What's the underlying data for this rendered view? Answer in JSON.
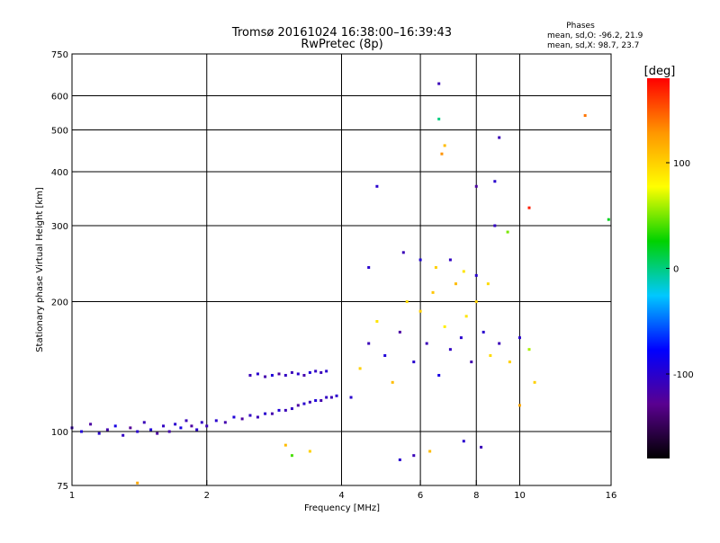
{
  "chart_data": {
    "type": "scatter",
    "title": "Tromsø 20161024 16:38:00–16:39:43",
    "subtitle": "RwPretec (8p)",
    "xlabel": "Frequency [MHz]",
    "ylabel": "Stationary phase Virtual Height [km]",
    "x_scale": "log",
    "y_scale": "log",
    "xlim": [
      1,
      16
    ],
    "ylim": [
      75,
      750
    ],
    "x_ticks": [
      1,
      2,
      4,
      6,
      8,
      10,
      16
    ],
    "x_tick_labels": [
      "1",
      "2",
      "4",
      "6",
      "8",
      "10",
      "16"
    ],
    "y_ticks": [
      75,
      100,
      200,
      300,
      400,
      500,
      600,
      750
    ],
    "y_tick_labels": [
      "75",
      "100",
      "200",
      "300",
      "400",
      "500",
      "600",
      "750"
    ],
    "grid": true,
    "phase_stats": {
      "heading": "Phases",
      "line_o": "mean, sd,O: -96.2, 21.9",
      "line_x": "mean, sd,X:  98.7, 23.7"
    },
    "colorbar": {
      "label": "[deg]",
      "min": -180,
      "max": 180,
      "ticks": [
        100,
        0,
        -100
      ],
      "tick_labels": [
        "100",
        "0",
        "-100"
      ],
      "colors": [
        "#000000",
        "#5a0090",
        "#0000ff",
        "#00c8ff",
        "#00d200",
        "#ffff00",
        "#ff9600",
        "#ff0000"
      ]
    },
    "clusters": [
      {
        "name": "",
        "points": [
          [
            1.0,
            102,
            -110
          ],
          [
            1.05,
            100,
            -95
          ],
          [
            1.1,
            104,
            -120
          ],
          [
            1.15,
            99,
            -100
          ],
          [
            1.2,
            101,
            -115
          ],
          [
            1.25,
            103,
            -90
          ],
          [
            1.3,
            98,
            -105
          ],
          [
            1.35,
            102,
            -125
          ],
          [
            1.4,
            100,
            -100
          ],
          [
            1.45,
            105,
            -110
          ],
          [
            1.5,
            101,
            -95
          ],
          [
            1.55,
            99,
            -120
          ],
          [
            1.6,
            103,
            -105
          ],
          [
            1.65,
            100,
            -115
          ],
          [
            1.7,
            104,
            -100
          ],
          [
            1.75,
            102,
            -90
          ],
          [
            1.8,
            106,
            -110
          ],
          [
            1.85,
            103,
            -120
          ],
          [
            1.9,
            101,
            -100
          ],
          [
            1.95,
            105,
            -105
          ]
        ]
      },
      {
        "name": "",
        "points": [
          [
            2.0,
            103,
            -110
          ],
          [
            2.1,
            106,
            -100
          ],
          [
            2.2,
            105,
            -115
          ],
          [
            2.3,
            108,
            -95
          ],
          [
            2.4,
            107,
            -120
          ],
          [
            2.5,
            109,
            -105
          ],
          [
            2.6,
            108,
            -110
          ],
          [
            2.7,
            110,
            -100
          ],
          [
            2.8,
            110,
            -115
          ],
          [
            2.9,
            112,
            -95
          ],
          [
            3.0,
            112,
            -110
          ],
          [
            3.1,
            113,
            -105
          ],
          [
            3.2,
            115,
            -120
          ],
          [
            3.3,
            116,
            -100
          ],
          [
            3.4,
            117,
            -110
          ],
          [
            3.5,
            118,
            -95
          ],
          [
            3.6,
            118,
            -115
          ],
          [
            3.7,
            120,
            -105
          ],
          [
            3.8,
            120,
            -110
          ],
          [
            3.9,
            121,
            -100
          ]
        ]
      },
      {
        "name": "",
        "points": [
          [
            2.5,
            135,
            -110
          ],
          [
            2.6,
            136,
            -100
          ],
          [
            2.7,
            134,
            -115
          ],
          [
            2.8,
            135,
            -95
          ],
          [
            2.9,
            136,
            -120
          ],
          [
            3.0,
            135,
            -105
          ],
          [
            3.1,
            137,
            -110
          ],
          [
            3.2,
            136,
            -100
          ],
          [
            3.3,
            135,
            -115
          ],
          [
            3.4,
            137,
            -95
          ],
          [
            3.5,
            138,
            -105
          ],
          [
            3.6,
            137,
            -110
          ],
          [
            3.7,
            138,
            -100
          ]
        ]
      },
      {
        "name": "",
        "points": [
          [
            4.2,
            120,
            -100
          ],
          [
            4.4,
            140,
            100
          ],
          [
            4.6,
            160,
            -110
          ],
          [
            4.8,
            180,
            90
          ],
          [
            5.0,
            150,
            -95
          ],
          [
            5.2,
            130,
            110
          ],
          [
            5.4,
            170,
            -120
          ],
          [
            5.6,
            200,
            95
          ],
          [
            5.8,
            145,
            -100
          ],
          [
            6.0,
            190,
            100
          ],
          [
            6.2,
            160,
            -110
          ],
          [
            6.4,
            210,
            105
          ],
          [
            6.6,
            135,
            -90
          ],
          [
            6.8,
            175,
            85
          ],
          [
            7.0,
            155,
            -105
          ],
          [
            7.2,
            220,
            110
          ],
          [
            7.4,
            165,
            -100
          ],
          [
            7.6,
            185,
            90
          ],
          [
            7.8,
            145,
            -115
          ],
          [
            8.0,
            200,
            100
          ],
          [
            8.3,
            170,
            -100
          ],
          [
            8.6,
            150,
            95
          ],
          [
            9.0,
            160,
            -110
          ],
          [
            9.5,
            145,
            100
          ],
          [
            10.0,
            165,
            -100
          ],
          [
            10.5,
            155,
            60
          ]
        ]
      },
      {
        "name": "",
        "points": [
          [
            4.6,
            240,
            -100
          ],
          [
            5.5,
            260,
            -110
          ],
          [
            6.0,
            250,
            -95
          ],
          [
            6.5,
            240,
            100
          ],
          [
            7.0,
            250,
            -105
          ],
          [
            7.5,
            235,
            90
          ],
          [
            8.0,
            230,
            -100
          ],
          [
            8.5,
            220,
            95
          ]
        ]
      },
      {
        "name": "",
        "points": [
          [
            4.8,
            370,
            -100
          ],
          [
            6.6,
            640,
            -110
          ],
          [
            6.6,
            530,
            0
          ],
          [
            6.8,
            460,
            110
          ],
          [
            6.7,
            440,
            130
          ],
          [
            8.0,
            370,
            -120
          ],
          [
            8.8,
            380,
            -100
          ],
          [
            9.0,
            480,
            -110
          ],
          [
            8.8,
            300,
            -105
          ],
          [
            9.4,
            290,
            50
          ],
          [
            10.5,
            330,
            170
          ],
          [
            14.0,
            540,
            140
          ],
          [
            15.8,
            310,
            20
          ]
        ]
      },
      {
        "name": "",
        "points": [
          [
            1.4,
            76,
            120
          ],
          [
            3.0,
            93,
            110
          ],
          [
            3.1,
            88,
            40
          ],
          [
            3.4,
            90,
            100
          ],
          [
            5.4,
            86,
            -100
          ],
          [
            5.8,
            88,
            -110
          ],
          [
            6.3,
            90,
            110
          ],
          [
            7.5,
            95,
            -100
          ],
          [
            8.2,
            92,
            -110
          ],
          [
            10.0,
            115,
            120
          ],
          [
            10.8,
            130,
            100
          ]
        ]
      }
    ]
  }
}
